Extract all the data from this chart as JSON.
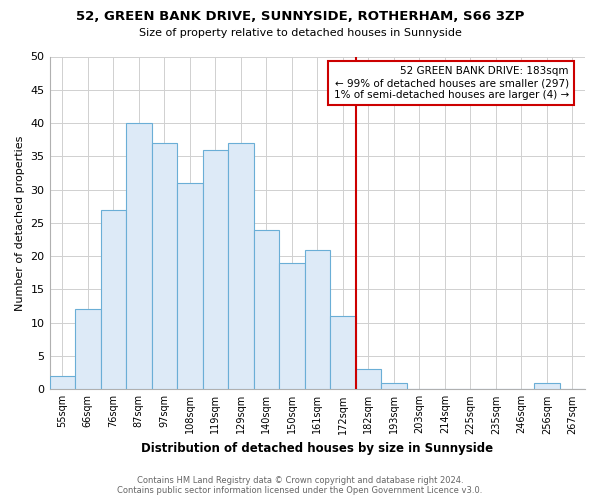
{
  "title": "52, GREEN BANK DRIVE, SUNNYSIDE, ROTHERHAM, S66 3ZP",
  "subtitle": "Size of property relative to detached houses in Sunnyside",
  "xlabel": "Distribution of detached houses by size in Sunnyside",
  "ylabel": "Number of detached properties",
  "bin_labels": [
    "55sqm",
    "66sqm",
    "76sqm",
    "87sqm",
    "97sqm",
    "108sqm",
    "119sqm",
    "129sqm",
    "140sqm",
    "150sqm",
    "161sqm",
    "172sqm",
    "182sqm",
    "193sqm",
    "203sqm",
    "214sqm",
    "225sqm",
    "235sqm",
    "246sqm",
    "256sqm",
    "267sqm"
  ],
  "bar_heights": [
    2,
    12,
    27,
    40,
    37,
    31,
    36,
    37,
    24,
    19,
    21,
    11,
    3,
    1,
    0,
    0,
    0,
    0,
    0,
    1,
    0
  ],
  "bar_color": "#ddeaf7",
  "bar_edge_color": "#6aaed6",
  "ylim": [
    0,
    50
  ],
  "yticks": [
    0,
    5,
    10,
    15,
    20,
    25,
    30,
    35,
    40,
    45,
    50
  ],
  "vline_x_index": 12,
  "vline_color": "#cc0000",
  "annotation_title": "52 GREEN BANK DRIVE: 183sqm",
  "annotation_line1": "← 99% of detached houses are smaller (297)",
  "annotation_line2": "1% of semi-detached houses are larger (4) →",
  "annotation_box_color": "#ffffff",
  "annotation_box_edge": "#cc0000",
  "footer_line1": "Contains HM Land Registry data © Crown copyright and database right 2024.",
  "footer_line2": "Contains public sector information licensed under the Open Government Licence v3.0.",
  "background_color": "#ffffff",
  "grid_color": "#d0d0d0"
}
